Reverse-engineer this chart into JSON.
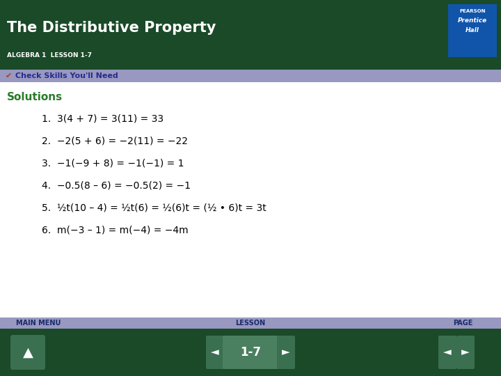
{
  "title": "The Distributive Property",
  "subtitle": "ALGEBRA 1  LESSON 1-7",
  "header_bg": "#1a4a28",
  "header_text_color": "#ffffff",
  "subtitle_text_color": "#ffffff",
  "banner_bg": "#9898c0",
  "banner_text": "Check Skills You'll Need",
  "banner_text_color": "#2a2a90",
  "solutions_label": "Solutions",
  "solutions_color": "#2a7a2a",
  "body_bg": "#ffffff",
  "footer_bg": "#1a4a28",
  "footer_banner_bg": "#9898c0",
  "footer_labels": [
    "MAIN MENU",
    "LESSON",
    "PAGE"
  ],
  "footer_label_color": "#1a2a6a",
  "page_label": "1-7",
  "pearson_bg": "#1155aa",
  "lines": [
    "1.  3(4 + 7) = 3(11) = 33",
    "2.  −2(5 + 6) = −2(11) = −22",
    "3.  −1(−9 + 8) = −1(−1) = 1",
    "4.  −0.5(8 – 6) = −0.5(2) = −1",
    "5.  ½t(10 – 4) = ½t(6) = ½(6)t = (½ • 6)t = 3t",
    "6.  m(−3 – 1) = m(−4) = −4m"
  ],
  "line_color": "#000000",
  "line_fontsize": 10,
  "title_fontsize": 15,
  "subtitle_fontsize": 6.5,
  "banner_fontsize": 8,
  "solutions_fontsize": 11,
  "footer_label_fontsize": 7
}
